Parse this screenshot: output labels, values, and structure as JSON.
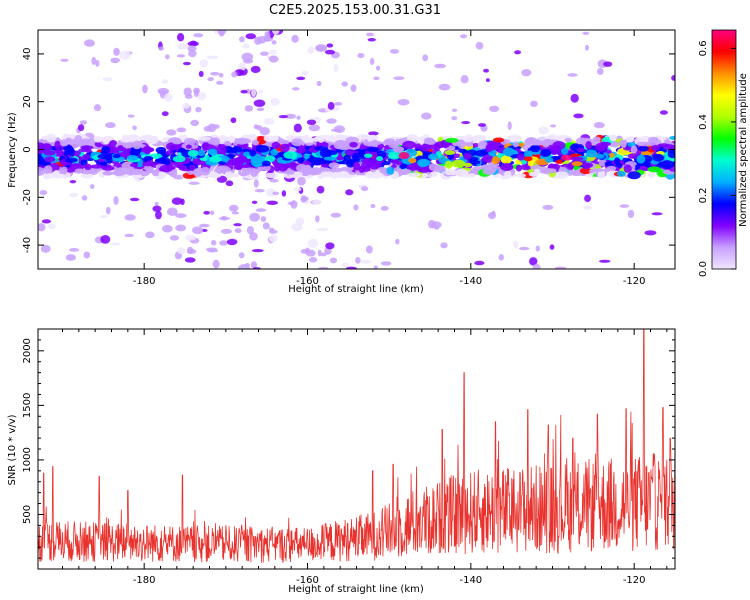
{
  "title": "C2E5.2025.153.00.31.G31",
  "chart_data": [
    {
      "type": "heatmap",
      "xlabel": "Height of straight line (km)",
      "ylabel": "Frequency (Hz)",
      "xlim": [
        -193,
        -115
      ],
      "ylim": [
        -50,
        50
      ],
      "xticks": [
        -180,
        -160,
        -140,
        -120
      ],
      "yticks": [
        -40,
        -20,
        0,
        20,
        40
      ],
      "band_center_hz": -3,
      "band_halfwidth_hz": 8,
      "colorbar": {
        "label": "Normalized spectral amplitude",
        "range": [
          0,
          0.65
        ],
        "ticks": [
          0.0,
          0.2,
          0.4,
          0.6
        ],
        "colormap": [
          "#f0e6ff",
          "#c8a0ff",
          "#8000ff",
          "#0000ff",
          "#00b0ff",
          "#00ffd0",
          "#00ff00",
          "#b0ff00",
          "#ffff00",
          "#ff9000",
          "#ff0000",
          "#ff0080"
        ]
      }
    },
    {
      "type": "line",
      "xlabel": "Height of straight line (km)",
      "ylabel": "SNR (10 * v/v)",
      "xlim": [
        -193,
        -115
      ],
      "ylim": [
        0,
        2200
      ],
      "xticks": [
        -180,
        -160,
        -140,
        -120
      ],
      "yticks": [
        500,
        1000,
        1500,
        2000
      ],
      "color": "#e8322d",
      "baseline_segments": [
        {
          "x": -193,
          "mean": 260
        },
        {
          "x": -175,
          "mean": 230
        },
        {
          "x": -160,
          "mean": 220
        },
        {
          "x": -152,
          "mean": 300
        },
        {
          "x": -147,
          "mean": 420
        },
        {
          "x": -140,
          "mean": 520
        },
        {
          "x": -130,
          "mean": 560
        },
        {
          "x": -120,
          "mean": 600
        },
        {
          "x": -115,
          "mean": 620
        }
      ],
      "spikes": [
        {
          "x": -192.3,
          "y": 880
        },
        {
          "x": -191.2,
          "y": 940
        },
        {
          "x": -185.5,
          "y": 850
        },
        {
          "x": -182.0,
          "y": 720
        },
        {
          "x": -175.3,
          "y": 860
        },
        {
          "x": -152.0,
          "y": 900
        },
        {
          "x": -149.5,
          "y": 960
        },
        {
          "x": -143.5,
          "y": 1280
        },
        {
          "x": -140.8,
          "y": 1800
        },
        {
          "x": -137.0,
          "y": 1350
        },
        {
          "x": -133.0,
          "y": 1460
        },
        {
          "x": -130.5,
          "y": 1320
        },
        {
          "x": -127.5,
          "y": 1200
        },
        {
          "x": -124.5,
          "y": 1420
        },
        {
          "x": -121.0,
          "y": 1470
        },
        {
          "x": -118.8,
          "y": 2200
        },
        {
          "x": -116.5,
          "y": 1480
        },
        {
          "x": -115.6,
          "y": 1200
        }
      ]
    }
  ]
}
